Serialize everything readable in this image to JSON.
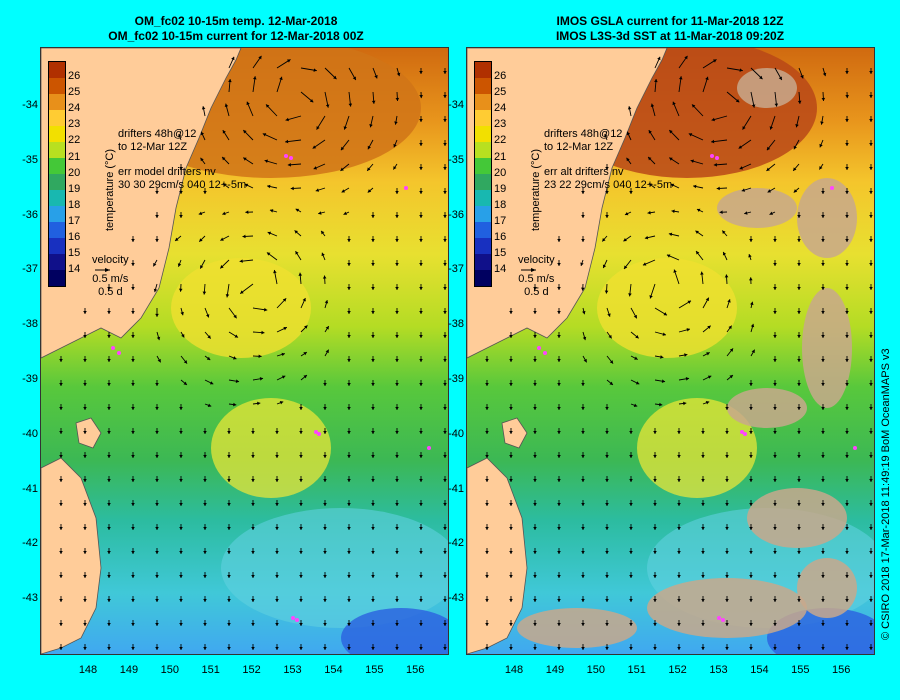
{
  "left_panel": {
    "title_line1": "OM_fc02 10-15m temp. 12-Mar-2018",
    "title_line2": "OM_fc02 10-15m current for 12-Mar-2018 00Z",
    "drifters_line1": "drifters 48h@12",
    "drifters_line2": "to 12-Mar 12Z",
    "err_line1": "err model drifters nv",
    "err_line2": "30 30 29cm/s 040 12+-5m"
  },
  "right_panel": {
    "title_line1": "IMOS GSLA current for 11-Mar-2018 12Z",
    "title_line2": "IMOS L3S-3d SST at 11-Mar-2018 09:20Z",
    "drifters_line1": "drifters 48h@12",
    "drifters_line2": "to 12-Mar 12Z",
    "err_line1": "err alt drifters nv",
    "err_line2": "23 22 29cm/s 040 12+-5m"
  },
  "velocity_key": {
    "label": "velocity",
    "speed": "0.5 m/s",
    "duration": "0.5 d"
  },
  "colorbar": {
    "title": "temperature (°C)",
    "labels": [
      "26",
      "25",
      "24",
      "23",
      "22",
      "21",
      "20",
      "19",
      "18",
      "17",
      "16",
      "15",
      "14"
    ],
    "colors": [
      "#b03000",
      "#cc5500",
      "#e8901a",
      "#ffcc33",
      "#f2e000",
      "#b8e020",
      "#44c838",
      "#30a860",
      "#18b8b0",
      "#28a0e8",
      "#2060e0",
      "#1830c0",
      "#10108a",
      "#000060"
    ]
  },
  "y_axis": [
    "-34",
    "-35",
    "-36",
    "-37",
    "-38",
    "-39",
    "-40",
    "-41",
    "-42",
    "-43"
  ],
  "x_axis": [
    "148",
    "149",
    "150",
    "151",
    "152",
    "153",
    "154",
    "155",
    "156"
  ],
  "credit": "© CSIRO 2018   17-Mar-2018 11:49:19 BoM OceanMAPS v3",
  "map": {
    "land_color": "#ffcc99",
    "cloud_color": "#c8a88c",
    "drifter_color": "#ff44ff",
    "arrow_color": "#000000"
  }
}
